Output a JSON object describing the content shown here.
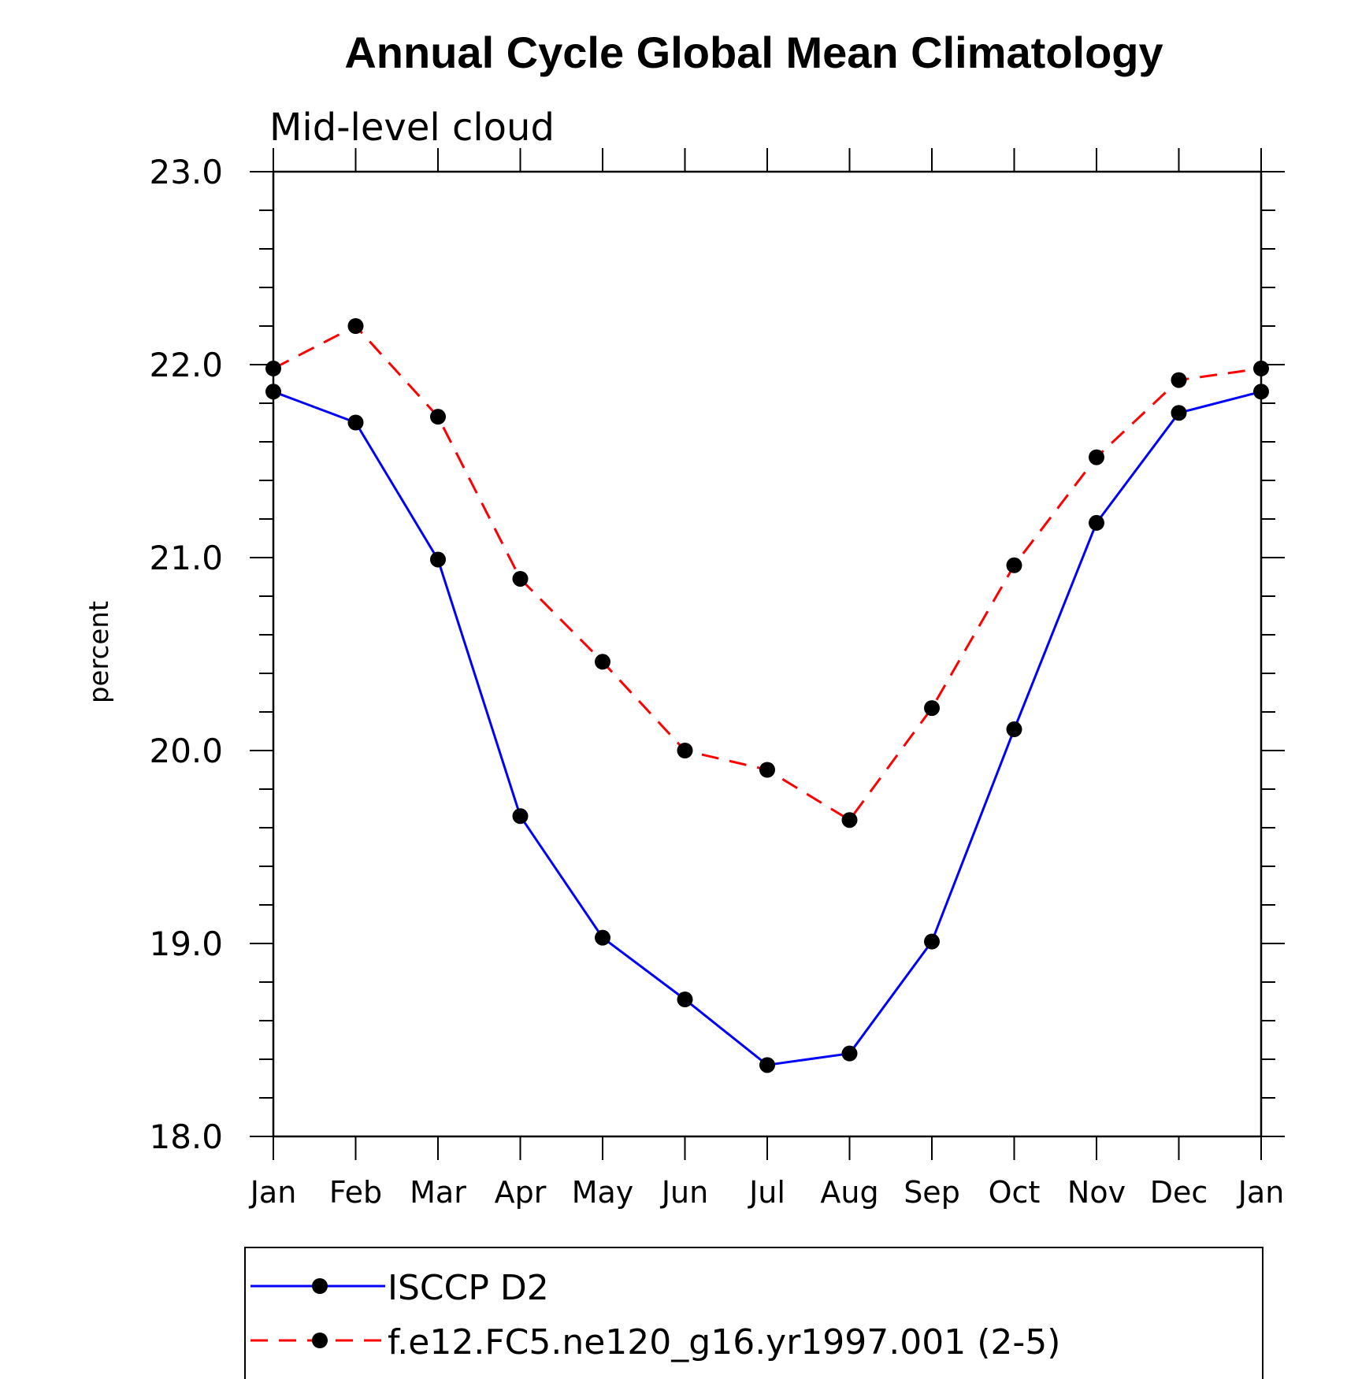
{
  "chart_data": {
    "type": "line",
    "title": "Annual Cycle Global Mean Climatology",
    "subtitle": "Mid-level cloud",
    "xlabel": "",
    "ylabel": "percent",
    "ylim": [
      18.0,
      23.0
    ],
    "yticks": [
      "18.0",
      "19.0",
      "20.0",
      "21.0",
      "22.0",
      "23.0"
    ],
    "categories": [
      "Jan",
      "Feb",
      "Mar",
      "Apr",
      "May",
      "Jun",
      "Jul",
      "Aug",
      "Sep",
      "Oct",
      "Nov",
      "Dec",
      "Jan"
    ],
    "grid": false,
    "legend_position": "bottom",
    "series": [
      {
        "name": "ISCCP D2",
        "color": "#0000ff",
        "line_style": "solid",
        "marker": "filled-circle",
        "values": [
          21.86,
          21.7,
          20.99,
          19.66,
          19.03,
          18.71,
          18.37,
          18.43,
          19.01,
          20.11,
          21.18,
          21.75,
          21.86
        ]
      },
      {
        "name": "f.e12.FC5.ne120_g16.yr1997.001 (2-5)",
        "color": "#ff0000",
        "line_style": "dashed",
        "marker": "filled-circle",
        "values": [
          21.98,
          22.2,
          21.73,
          20.89,
          20.46,
          20.0,
          19.9,
          19.64,
          20.22,
          20.96,
          21.52,
          21.92,
          21.98
        ]
      }
    ]
  }
}
